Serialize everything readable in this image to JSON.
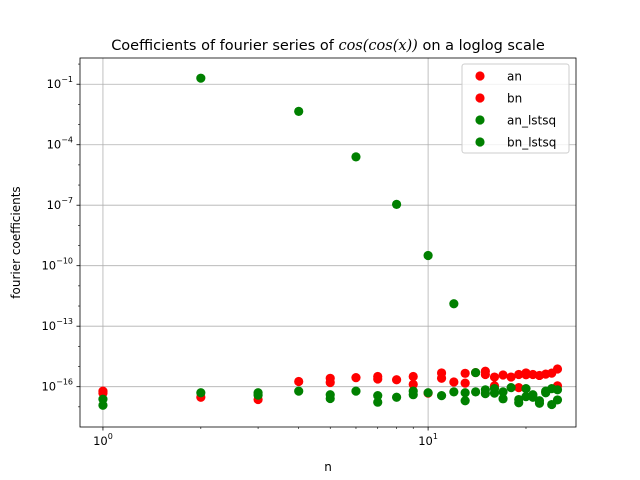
{
  "chart_data": {
    "type": "scatter",
    "title": "Coefficients of fourier series of cos(cos(x)) on a loglog scale",
    "title_parts": {
      "prefix": "Coefficients of fourier series of ",
      "math": "cos(cos(x))",
      "suffix": " on a loglog scale"
    },
    "xlabel": "n",
    "ylabel": "fourier coefficients",
    "xscale": "log",
    "yscale": "log",
    "xlim": [
      0.85,
      28.5
    ],
    "ylim": [
      1e-18,
      2
    ],
    "grid": true,
    "legend_position": "top-right",
    "x_ticks": [
      {
        "value": 1,
        "base": "10",
        "exp": "0"
      },
      {
        "value": 10,
        "base": "10",
        "exp": "1"
      }
    ],
    "y_ticks": [
      {
        "value": 1e-16,
        "base": "10",
        "exp": "−16"
      },
      {
        "value": 1e-13,
        "base": "10",
        "exp": "−13"
      },
      {
        "value": 1e-10,
        "base": "10",
        "exp": "−10"
      },
      {
        "value": 1e-07,
        "base": "10",
        "exp": "−7"
      },
      {
        "value": 0.0001,
        "base": "10",
        "exp": "−4"
      },
      {
        "value": 0.1,
        "base": "10",
        "exp": "−1"
      }
    ],
    "series": [
      {
        "name": "an",
        "color": "#ff0000",
        "points": [
          [
            1,
            6e-17
          ],
          [
            1,
            4.8e-17
          ],
          [
            2,
            3e-17
          ],
          [
            3,
            2.3e-17
          ],
          [
            4,
            1.8e-16
          ],
          [
            5,
            2.6e-16
          ],
          [
            5,
            1.6e-16
          ],
          [
            6,
            2.8e-16
          ],
          [
            7,
            3.2e-16
          ],
          [
            7,
            2.4e-16
          ],
          [
            8,
            2.2e-16
          ],
          [
            9,
            3.2e-16
          ],
          [
            9,
            1.3e-16
          ],
          [
            10,
            4.8e-17
          ],
          [
            11,
            4.8e-16
          ],
          [
            11,
            2.6e-16
          ],
          [
            12,
            1.7e-16
          ],
          [
            13,
            4.6e-16
          ],
          [
            13,
            1.5e-16
          ],
          [
            14,
            5e-16
          ],
          [
            15,
            5.8e-16
          ],
          [
            15,
            4e-16
          ],
          [
            16,
            3e-16
          ],
          [
            16,
            1.1e-16
          ],
          [
            17,
            3.8e-16
          ],
          [
            18,
            3e-16
          ],
          [
            19,
            4e-16
          ],
          [
            19,
            9e-17
          ],
          [
            20,
            4.8e-16
          ],
          [
            20,
            3.9e-16
          ],
          [
            21,
            4e-16
          ],
          [
            22,
            3.6e-16
          ],
          [
            23,
            4.2e-16
          ],
          [
            23,
            5.5e-17
          ],
          [
            24,
            4.7e-16
          ],
          [
            25,
            7.5e-16
          ],
          [
            25,
            1.1e-16
          ]
        ]
      },
      {
        "name": "bn",
        "color": "#ff0000",
        "points": []
      },
      {
        "name": "an_lstsq",
        "color": "#008000",
        "points": [
          [
            2,
            0.2
          ],
          [
            4,
            0.0045
          ],
          [
            6,
            2.5e-05
          ],
          [
            8,
            1.1e-07
          ],
          [
            10,
            3.2e-10
          ],
          [
            12,
            1.3e-12
          ],
          [
            14,
            5e-16
          ],
          [
            1,
            1.2e-17
          ],
          [
            1,
            2.4e-17
          ],
          [
            2,
            5e-17
          ],
          [
            3,
            5e-17
          ],
          [
            3,
            3.8e-17
          ],
          [
            4,
            6e-17
          ],
          [
            5,
            4e-17
          ],
          [
            5,
            2.6e-17
          ],
          [
            6,
            6e-17
          ],
          [
            7,
            3.6e-17
          ],
          [
            7,
            1.7e-17
          ],
          [
            8,
            3e-17
          ],
          [
            9,
            6e-17
          ],
          [
            9,
            4e-17
          ],
          [
            10,
            5e-17
          ],
          [
            11,
            3.6e-17
          ],
          [
            12,
            5.5e-17
          ],
          [
            13,
            5e-17
          ],
          [
            13,
            2e-17
          ],
          [
            14,
            5.5e-17
          ],
          [
            15,
            7e-17
          ],
          [
            15,
            4.5e-17
          ],
          [
            16,
            8e-17
          ],
          [
            16,
            4.8e-17
          ],
          [
            17,
            5.5e-17
          ],
          [
            17,
            2.5e-17
          ],
          [
            18,
            9e-17
          ],
          [
            19,
            2.3e-17
          ],
          [
            19,
            1.6e-17
          ],
          [
            20,
            8e-17
          ],
          [
            20,
            3.2e-17
          ],
          [
            21,
            4e-17
          ],
          [
            21,
            3e-17
          ],
          [
            22,
            2e-17
          ],
          [
            22,
            1.5e-17
          ],
          [
            23,
            6e-17
          ],
          [
            23,
            5e-17
          ],
          [
            24,
            8e-17
          ],
          [
            24,
            1.3e-17
          ],
          [
            25,
            7e-17
          ],
          [
            25,
            2.2e-17
          ]
        ]
      },
      {
        "name": "bn_lstsq",
        "color": "#008000",
        "points": []
      }
    ]
  }
}
